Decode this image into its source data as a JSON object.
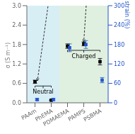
{
  "chart_data": {
    "type": "scatter",
    "categories": [
      "PAAm",
      "PhEMA",
      "PDMAEMA",
      "PAMPS",
      "PSBMA"
    ],
    "series": [
      {
        "marker": "square",
        "color": "#000000",
        "values": [
          0.65,
          0.08,
          1.75,
          1.82,
          1.27
        ],
        "errors": [
          0.05,
          0.01,
          0.07,
          0.06,
          0.1
        ]
      },
      {
        "marker": "square",
        "color": "#2255cc",
        "axis": "y2",
        "values": [
          10,
          10,
          170,
          180,
          70
        ],
        "errors": [
          3,
          3,
          12,
          12,
          8
        ]
      }
    ],
    "ylabel": "σ (S m⁻¹)",
    "y2label": "Fracture strain (%)",
    "ylim": [
      0,
      3.0
    ],
    "yticks": [
      {
        "value": 0,
        "label": "0.0"
      },
      0.6,
      1.2,
      1.8,
      2.4,
      {
        "value": 3,
        "label": "3.0"
      }
    ],
    "y2lim": [
      0,
      300
    ],
    "y2ticks": [
      0,
      60,
      120,
      180,
      240,
      300
    ],
    "grid": false,
    "annotations": [
      {
        "text": "Neutral",
        "color": "#d8eef5",
        "categories": [
          "PAAm",
          "PhEMA"
        ]
      },
      {
        "text": "Charged",
        "color": "#e0f0e0",
        "categories": [
          "PDMAEMA",
          "PAMPS",
          "PSBMA"
        ]
      }
    ]
  }
}
